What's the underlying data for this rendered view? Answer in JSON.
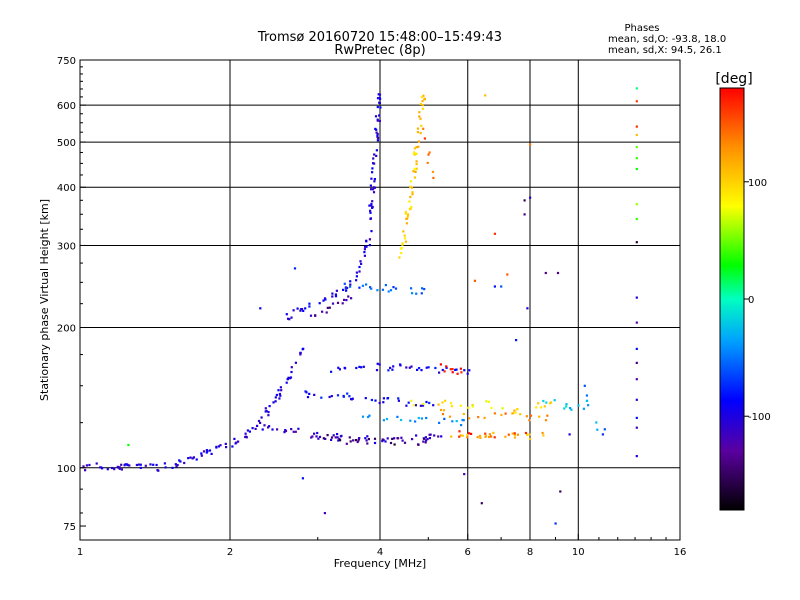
{
  "chart_data": {
    "type": "scatter",
    "title": "Tromsø 20160720 15:48:00–15:49:43",
    "subtitle": "RwPretec (8p)",
    "xlabel": "Frequency [MHz]",
    "ylabel": "Stationary phase Virtual Height [km]",
    "x_scale": "log",
    "y_scale": "log",
    "xlim": [
      1,
      16
    ],
    "ylim": [
      70,
      750
    ],
    "x_ticks": [
      {
        "value": 1,
        "label": "1"
      },
      {
        "value": 2,
        "label": "2"
      },
      {
        "value": 4,
        "label": "4"
      },
      {
        "value": 6,
        "label": "6"
      },
      {
        "value": 8,
        "label": "8"
      },
      {
        "value": 10,
        "label": "10"
      },
      {
        "value": 16,
        "label": "16"
      }
    ],
    "y_ticks": [
      {
        "value": 75,
        "label": "75"
      },
      {
        "value": 100,
        "label": "100"
      },
      {
        "value": 200,
        "label": "200"
      },
      {
        "value": 300,
        "label": "300"
      },
      {
        "value": 400,
        "label": "400"
      },
      {
        "value": 500,
        "label": "500"
      },
      {
        "value": 600,
        "label": "600"
      },
      {
        "value": 750,
        "label": "750"
      }
    ],
    "grid_x": [
      2,
      4,
      6,
      8,
      10
    ],
    "grid_y": [
      100,
      200,
      300,
      400,
      500,
      600
    ],
    "grid": true,
    "phases": {
      "heading": "Phases",
      "line_o": "mean, sd,O: -93.8, 18.0",
      "line_x": "mean, sd,X:  94.5, 26.1"
    },
    "colorbar": {
      "label": "[deg]",
      "min": -180,
      "max": 180,
      "ticks": [
        {
          "value": 100,
          "label": "100"
        },
        {
          "value": 0,
          "label": "0"
        },
        {
          "value": -100,
          "label": "-100"
        }
      ]
    },
    "traces": [
      {
        "f": [
          1.0,
          1.1,
          1.2,
          1.3,
          1.4,
          1.5,
          1.6,
          1.7,
          1.8,
          1.9,
          2.0,
          2.1,
          2.2,
          2.3,
          2.4,
          2.5,
          2.6,
          2.7,
          2.8
        ],
        "h": [
          99,
          101,
          100,
          101,
          100,
          101,
          103,
          106,
          108,
          111,
          112,
          116,
          120,
          127,
          134,
          143,
          155,
          166,
          178
        ],
        "phase": -100,
        "n": 8
      },
      {
        "f": [
          2.6,
          2.8,
          3.0,
          3.2,
          3.4,
          3.6,
          3.8,
          4.0
        ],
        "h": [
          210,
          220,
          228,
          233,
          240,
          262,
          310,
          640
        ],
        "phase": -100,
        "n": 7
      },
      {
        "f": [
          2.9,
          3.0,
          3.2,
          3.4,
          3.5
        ],
        "h": [
          210,
          215,
          222,
          230,
          238
        ],
        "phase": -130,
        "n": 5
      },
      {
        "f": [
          3.4,
          3.6,
          3.8,
          4.0,
          4.2,
          4.5,
          4.8,
          5.0
        ],
        "h": [
          245,
          246,
          244,
          243,
          242,
          241,
          240,
          239
        ],
        "phase": -60,
        "n": 4
      },
      {
        "f": [
          4.4,
          4.5,
          4.6,
          4.7,
          4.8,
          4.9
        ],
        "h": [
          280,
          320,
          380,
          450,
          540,
          640
        ],
        "phase": 100,
        "n": 7
      },
      {
        "f": [
          4.9,
          5.0,
          5.1
        ],
        "h": [
          560,
          470,
          410
        ],
        "phase": 145,
        "n": 2
      },
      {
        "f": [
          2.3,
          2.6,
          2.8,
          3.0,
          3.3,
          3.6,
          4.0,
          4.5,
          5.0,
          5.5
        ],
        "h": [
          123,
          121,
          119,
          117,
          116,
          115,
          115,
          115,
          116,
          117
        ],
        "phase": -110,
        "n": 6
      },
      {
        "f": [
          3.0,
          3.3,
          3.6,
          4.0,
          4.5,
          5.0
        ],
        "h": [
          116,
          115,
          114,
          114,
          114,
          114
        ],
        "phase": -150,
        "n": 4
      },
      {
        "f": [
          5.5,
          6.0,
          6.5,
          7.0,
          7.5,
          8.0,
          8.5
        ],
        "h": [
          118,
          118,
          118,
          118,
          117,
          117,
          117
        ],
        "phase": 115,
        "n": 5
      },
      {
        "f": [
          5.8,
          6.5,
          7.2,
          8.0
        ],
        "h": [
          118,
          118,
          117,
          117
        ],
        "phase": 160,
        "n": 3
      },
      {
        "f": [
          3.2,
          3.5,
          3.8,
          4.0,
          4.3,
          4.6,
          5.0,
          5.5,
          6.0
        ],
        "h": [
          163,
          164,
          165,
          165,
          164,
          164,
          163,
          162,
          160
        ],
        "phase": -95,
        "n": 5
      },
      {
        "f": [
          5.3,
          5.5,
          5.7,
          5.9
        ],
        "h": [
          164,
          163,
          162,
          161
        ],
        "phase": 175,
        "n": 2
      },
      {
        "f": [
          2.8,
          3.1,
          3.4,
          3.7,
          4.0,
          4.3,
          4.6,
          4.9,
          5.2
        ],
        "h": [
          145,
          143,
          142,
          141,
          140,
          139,
          138,
          137,
          136
        ],
        "phase": -90,
        "n": 5
      },
      {
        "f": [
          4.6,
          5.0,
          5.5,
          6.0,
          6.5,
          7.0,
          7.5,
          8.0,
          8.5,
          9.0
        ],
        "h": [
          138,
          140,
          137,
          135,
          138,
          134,
          132,
          136,
          135,
          140
        ],
        "phase": 90,
        "n": 3
      },
      {
        "f": [
          5.2,
          5.8,
          6.4,
          7.0,
          7.6,
          8.2,
          8.8
        ],
        "h": [
          132,
          130,
          128,
          132,
          130,
          127,
          129
        ],
        "phase": 130,
        "n": 3
      },
      {
        "f": [
          3.6,
          4.0,
          4.4,
          4.8,
          5.2,
          5.8,
          6.4
        ],
        "h": [
          128,
          127,
          127,
          126,
          126,
          125,
          125
        ],
        "phase": -40,
        "n": 3
      },
      {
        "f": [
          8.5,
          9.0,
          9.5,
          10.0,
          10.5,
          11.0
        ],
        "h": [
          140,
          138,
          136,
          134,
          138,
          118
        ],
        "phase": -20,
        "n": 2
      }
    ],
    "sparse_points": [
      {
        "f": 1.25,
        "h": 112,
        "phase": 30
      },
      {
        "f": 2.3,
        "h": 220,
        "phase": -90
      },
      {
        "f": 2.7,
        "h": 268,
        "phase": -75
      },
      {
        "f": 2.8,
        "h": 95,
        "phase": -80
      },
      {
        "f": 3.1,
        "h": 80,
        "phase": -120
      },
      {
        "f": 5.9,
        "h": 97,
        "phase": -120
      },
      {
        "f": 6.5,
        "h": 630,
        "phase": 110
      },
      {
        "f": 6.4,
        "h": 84,
        "phase": -150
      },
      {
        "f": 6.8,
        "h": 318,
        "phase": 165
      },
      {
        "f": 7.2,
        "h": 260,
        "phase": 150
      },
      {
        "f": 7.5,
        "h": 188,
        "phase": -80
      },
      {
        "f": 7.8,
        "h": 375,
        "phase": -150
      },
      {
        "f": 7.8,
        "h": 350,
        "phase": -140
      },
      {
        "f": 7.9,
        "h": 220,
        "phase": -100
      },
      {
        "f": 8.0,
        "h": 494,
        "phase": 140
      },
      {
        "f": 8.0,
        "h": 380,
        "phase": -100
      },
      {
        "f": 8.6,
        "h": 262,
        "phase": -140
      },
      {
        "f": 9.1,
        "h": 262,
        "phase": -140
      },
      {
        "f": 9.0,
        "h": 76,
        "phase": -70
      },
      {
        "f": 9.2,
        "h": 89,
        "phase": -150
      },
      {
        "f": 6.2,
        "h": 252,
        "phase": 150
      },
      {
        "f": 6.8,
        "h": 245,
        "phase": -80
      },
      {
        "f": 7.0,
        "h": 245,
        "phase": -60
      },
      {
        "f": 10.3,
        "h": 150,
        "phase": -60
      },
      {
        "f": 10.4,
        "h": 143,
        "phase": -50
      },
      {
        "f": 11.2,
        "h": 118,
        "phase": -70
      },
      {
        "f": 11.3,
        "h": 121,
        "phase": -60
      },
      {
        "f": 9.6,
        "h": 118,
        "phase": -100
      },
      {
        "f": 13.1,
        "h": 652,
        "phase": 10
      },
      {
        "f": 13.1,
        "h": 612,
        "phase": 160
      },
      {
        "f": 13.1,
        "h": 540,
        "phase": 165
      },
      {
        "f": 13.1,
        "h": 518,
        "phase": 110
      },
      {
        "f": 13.1,
        "h": 488,
        "phase": 50
      },
      {
        "f": 13.1,
        "h": 462,
        "phase": 40
      },
      {
        "f": 13.1,
        "h": 438,
        "phase": 30
      },
      {
        "f": 13.1,
        "h": 368,
        "phase": 60
      },
      {
        "f": 13.1,
        "h": 342,
        "phase": 40
      },
      {
        "f": 13.1,
        "h": 305,
        "phase": -160
      },
      {
        "f": 13.1,
        "h": 232,
        "phase": -100
      },
      {
        "f": 13.1,
        "h": 205,
        "phase": -130
      },
      {
        "f": 13.1,
        "h": 180,
        "phase": -80
      },
      {
        "f": 13.1,
        "h": 168,
        "phase": -140
      },
      {
        "f": 13.1,
        "h": 155,
        "phase": -130
      },
      {
        "f": 13.1,
        "h": 140,
        "phase": -110
      },
      {
        "f": 13.1,
        "h": 128,
        "phase": -80
      },
      {
        "f": 13.1,
        "h": 122,
        "phase": -120
      },
      {
        "f": 13.1,
        "h": 106,
        "phase": -100
      }
    ]
  }
}
